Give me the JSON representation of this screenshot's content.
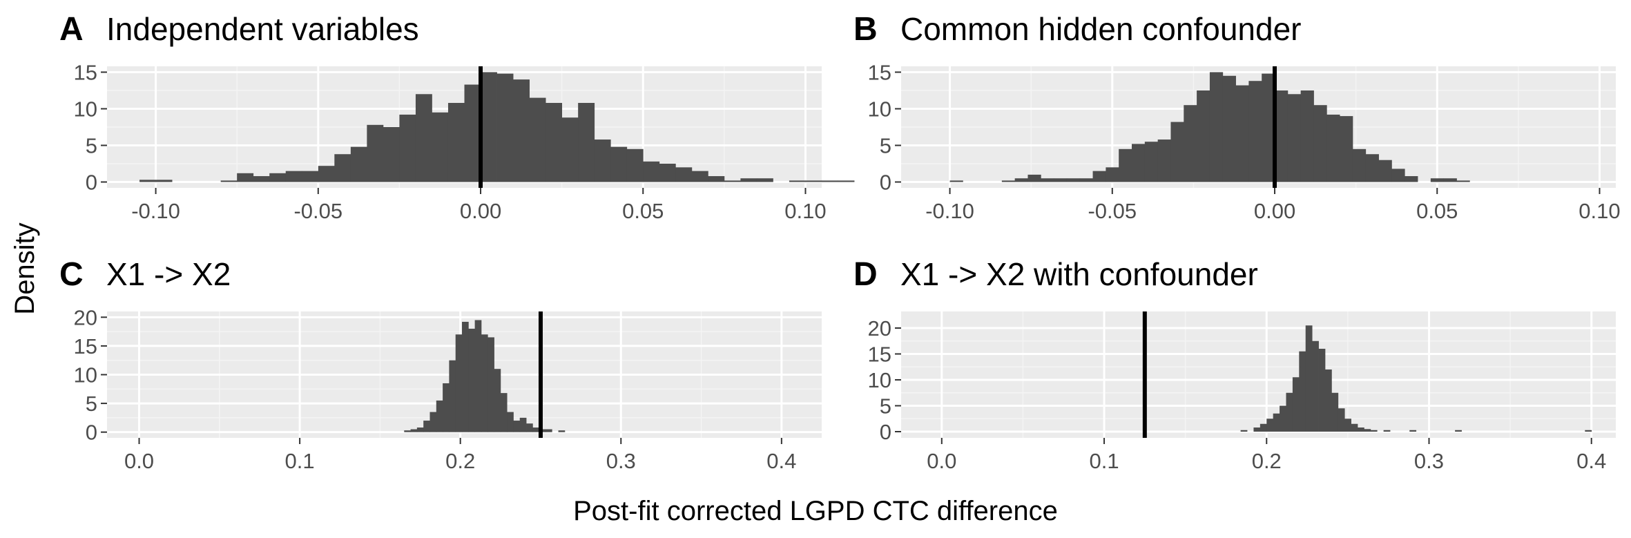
{
  "figure": {
    "ylabel": "Density",
    "xlabel": "Post-fit corrected LGPD CTC difference",
    "colors": {
      "panel_bg": "#ebebeb",
      "grid_major": "#ffffff",
      "grid_minor": "#f4f4f4",
      "bar": "#4d4d4d",
      "vline": "#000000",
      "tick_text": "#4d4d4d"
    }
  },
  "chart_data": [
    {
      "type": "histogram",
      "panel": "A",
      "title": "Independent variables",
      "xlim": [
        -0.115,
        0.105
      ],
      "ylim": [
        -0.8,
        15.8
      ],
      "xticks": [
        -0.1,
        -0.05,
        0.0,
        0.05,
        0.1
      ],
      "xtick_labels": [
        "-0.10",
        "-0.05",
        "0.00",
        "0.05",
        "0.10"
      ],
      "yticks": [
        0,
        5,
        10,
        15
      ],
      "ytick_labels": [
        "0",
        "5",
        "10",
        "15"
      ],
      "bin_start": -0.105,
      "bin_width": 0.005,
      "counts": [
        0.3,
        0.3,
        0,
        0,
        0,
        0.2,
        1.2,
        0.8,
        1.2,
        1.5,
        1.5,
        2.2,
        3.8,
        4.8,
        7.8,
        7.5,
        9.2,
        12,
        9.5,
        10.8,
        13.3,
        15,
        14.8,
        14,
        11.5,
        10.8,
        8.8,
        10.8,
        5.8,
        4.8,
        4.5,
        2.8,
        2.5,
        2,
        1.5,
        0.8,
        0.2,
        0.5,
        0.5,
        0,
        0.2,
        0.2,
        0.2,
        0.2
      ],
      "vline": 0.0
    },
    {
      "type": "histogram",
      "panel": "B",
      "title": "Common hidden confounder",
      "xlim": [
        -0.115,
        0.105
      ],
      "ylim": [
        -0.8,
        15.8
      ],
      "xticks": [
        -0.1,
        -0.05,
        0.0,
        0.05,
        0.1
      ],
      "xtick_labels": [
        "-0.10",
        "-0.05",
        "0.00",
        "0.05",
        "0.10"
      ],
      "yticks": [
        0,
        5,
        10,
        15
      ],
      "ytick_labels": [
        "0",
        "5",
        "10",
        "15"
      ],
      "bin_start": -0.1,
      "bin_width": 0.004,
      "counts": [
        0.2,
        0,
        0,
        0,
        0.2,
        0.5,
        1.0,
        0.5,
        0.5,
        0.5,
        0.5,
        1.5,
        2.0,
        4.5,
        5.2,
        5.5,
        5.8,
        8.2,
        10.5,
        12.5,
        15,
        14.5,
        13.2,
        13.8,
        14.8,
        12.5,
        12.0,
        12.5,
        10.5,
        9.2,
        9.0,
        4.5,
        3.8,
        3.0,
        1.8,
        0.8,
        0,
        0.5,
        0.5,
        0.2,
        0,
        0,
        0,
        0,
        0,
        0
      ],
      "vline": 0.0
    },
    {
      "type": "histogram",
      "panel": "C",
      "title": "X1 -> X2",
      "xlim": [
        -0.02,
        0.425
      ],
      "ylim": [
        -1.0,
        21.0
      ],
      "xticks": [
        0.0,
        0.1,
        0.2,
        0.3,
        0.4
      ],
      "xtick_labels": [
        "0.0",
        "0.1",
        "0.2",
        "0.3",
        "0.4"
      ],
      "yticks": [
        0,
        5,
        10,
        15,
        20
      ],
      "ytick_labels": [
        "0",
        "5",
        "10",
        "15",
        "20"
      ],
      "bin_start": 0.165,
      "bin_width": 0.004,
      "counts": [
        0.3,
        0.5,
        0.8,
        2.0,
        3.5,
        5.5,
        8.5,
        12.5,
        17.0,
        19.2,
        18.0,
        19.5,
        17.0,
        16.5,
        11.0,
        6.8,
        3.5,
        2.0,
        2.5,
        1.5,
        0.8,
        0.5,
        0.5,
        0,
        0.3
      ],
      "vline": 0.25
    },
    {
      "type": "histogram",
      "panel": "D",
      "title": "X1 -> X2 with confounder",
      "xlim": [
        -0.025,
        0.415
      ],
      "ylim": [
        -1.2,
        23.2
      ],
      "xticks": [
        0.0,
        0.1,
        0.2,
        0.3,
        0.4
      ],
      "xtick_labels": [
        "0.0",
        "0.1",
        "0.2",
        "0.3",
        "0.4"
      ],
      "yticks": [
        0,
        5,
        10,
        15,
        20
      ],
      "ytick_labels": [
        "0",
        "5",
        "10",
        "15",
        "20"
      ],
      "bin_start": 0.18,
      "bin_width": 0.004,
      "counts": [
        0,
        0.3,
        0,
        0.8,
        1.5,
        2.5,
        3.5,
        5.0,
        7.5,
        10.5,
        15.5,
        20.5,
        17.5,
        16.0,
        12.0,
        7.5,
        4.5,
        2.5,
        1.5,
        0.8,
        0.5,
        0.3,
        0,
        0.3,
        0,
        0,
        0,
        0.3,
        0,
        0,
        0,
        0,
        0,
        0,
        0.3,
        0,
        0,
        0,
        0,
        0,
        0,
        0,
        0,
        0,
        0,
        0,
        0,
        0,
        0,
        0,
        0,
        0,
        0,
        0,
        0.3
      ],
      "vline": 0.125
    }
  ]
}
